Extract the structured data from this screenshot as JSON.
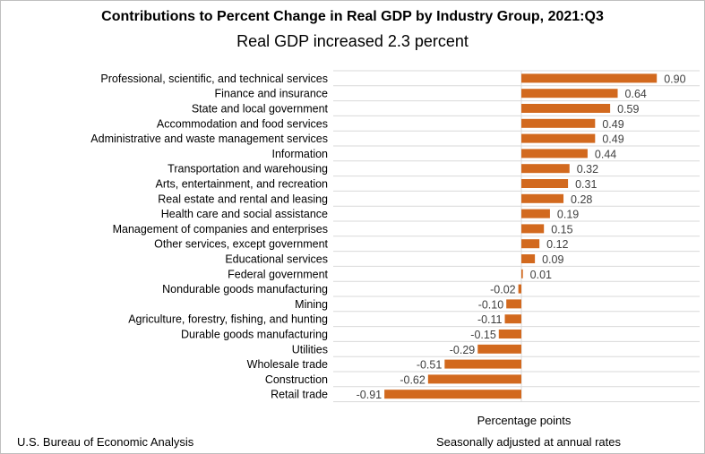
{
  "chart_data": {
    "type": "bar",
    "orientation": "horizontal",
    "title": "Contributions to Percent Change in Real GDP by Industry Group, 2021:Q3",
    "subtitle": "Real GDP increased 2.3 percent",
    "xlabel": "Percentage points",
    "categories": [
      "Professional, scientific, and technical services",
      "Finance and insurance",
      "State and local government",
      "Accommodation and food services",
      "Administrative and waste management services",
      "Information",
      "Transportation and warehousing",
      "Arts, entertainment, and recreation",
      "Real estate and rental and leasing",
      "Health care and social assistance",
      "Management of companies and enterprises",
      "Other services, except government",
      "Educational services",
      "Federal government",
      "Nondurable goods manufacturing",
      "Mining",
      "Agriculture, forestry, fishing, and hunting",
      "Durable goods manufacturing",
      "Utilities",
      "Wholesale trade",
      "Construction",
      "Retail trade"
    ],
    "values": [
      0.9,
      0.64,
      0.59,
      0.49,
      0.49,
      0.44,
      0.32,
      0.31,
      0.28,
      0.19,
      0.15,
      0.12,
      0.09,
      0.01,
      -0.02,
      -0.1,
      -0.11,
      -0.15,
      -0.29,
      -0.51,
      -0.62,
      -0.91
    ],
    "value_labels": [
      "0.90",
      "0.64",
      "0.59",
      "0.49",
      "0.49",
      "0.44",
      "0.32",
      "0.31",
      "0.28",
      "0.19",
      "0.15",
      "0.12",
      "0.09",
      "0.01",
      "-0.02",
      "-0.10",
      "-0.11",
      "-0.15",
      "-0.29",
      "-0.51",
      "-0.62",
      "-0.91"
    ],
    "xlim": [
      -1.2,
      1.2
    ],
    "grid": "horizontal",
    "bar_color": "#d2691e",
    "grid_color": "#d9d9d9"
  },
  "footer": {
    "source": "U.S. Bureau of Economic Analysis",
    "note": "Seasonally adjusted at annual rates"
  }
}
